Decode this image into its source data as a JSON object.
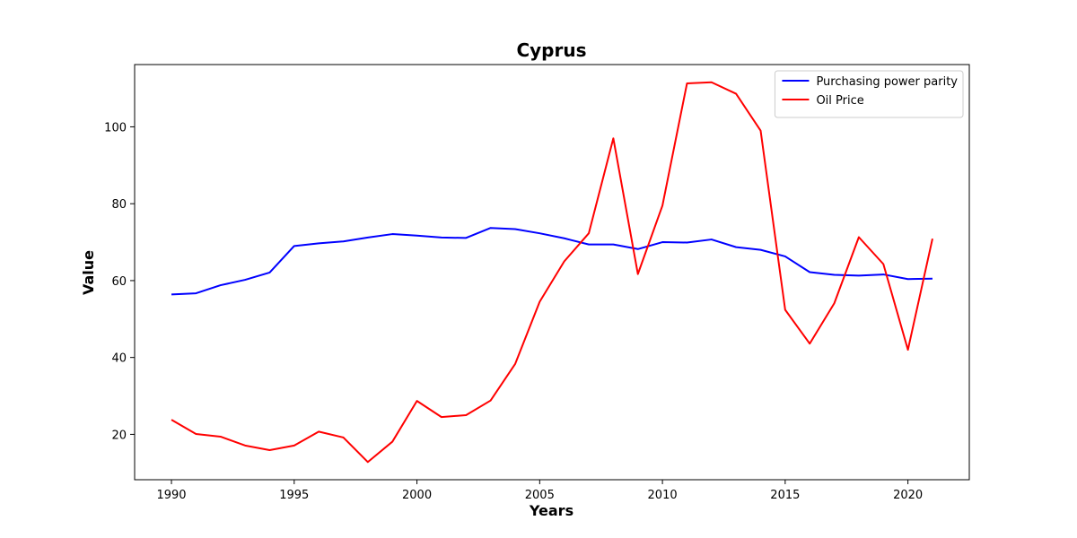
{
  "chart_data": {
    "type": "line",
    "title": "Cyprus",
    "xlabel": "Years",
    "ylabel": "Value",
    "xlim": [
      1988.5,
      2022.5
    ],
    "ylim": [
      8.2,
      116.2
    ],
    "xticks": [
      1990,
      1995,
      2000,
      2005,
      2010,
      2015,
      2020
    ],
    "yticks": [
      20,
      40,
      60,
      80,
      100
    ],
    "grid": false,
    "legend_position": "top-right",
    "x": [
      1990,
      1991,
      1992,
      1993,
      1994,
      1995,
      1996,
      1997,
      1998,
      1999,
      2000,
      2001,
      2002,
      2003,
      2004,
      2005,
      2006,
      2007,
      2008,
      2009,
      2010,
      2011,
      2012,
      2013,
      2014,
      2015,
      2016,
      2017,
      2018,
      2019,
      2020,
      2021
    ],
    "series": [
      {
        "name": "Purchasing power parity",
        "color": "#0000ff",
        "values": [
          56.4,
          56.7,
          58.8,
          60.2,
          62.1,
          69.0,
          69.7,
          70.2,
          71.2,
          72.1,
          71.7,
          71.2,
          71.1,
          73.7,
          73.4,
          72.3,
          71.0,
          69.4,
          69.4,
          68.2,
          70.0,
          69.9,
          70.7,
          68.7,
          68.0,
          66.3,
          62.2,
          61.5,
          61.3,
          61.6,
          60.4,
          60.5
        ]
      },
      {
        "name": "Oil Price",
        "color": "#ff0000",
        "values": [
          23.8,
          20.1,
          19.4,
          17.1,
          15.9,
          17.1,
          20.7,
          19.2,
          12.8,
          18.1,
          28.7,
          24.5,
          25.0,
          28.8,
          38.3,
          54.5,
          65.0,
          72.3,
          97.0,
          61.7,
          79.5,
          111.3,
          111.6,
          108.6,
          99.0,
          52.4,
          43.6,
          54.1,
          71.3,
          64.3,
          42.0,
          70.9
        ]
      }
    ]
  }
}
